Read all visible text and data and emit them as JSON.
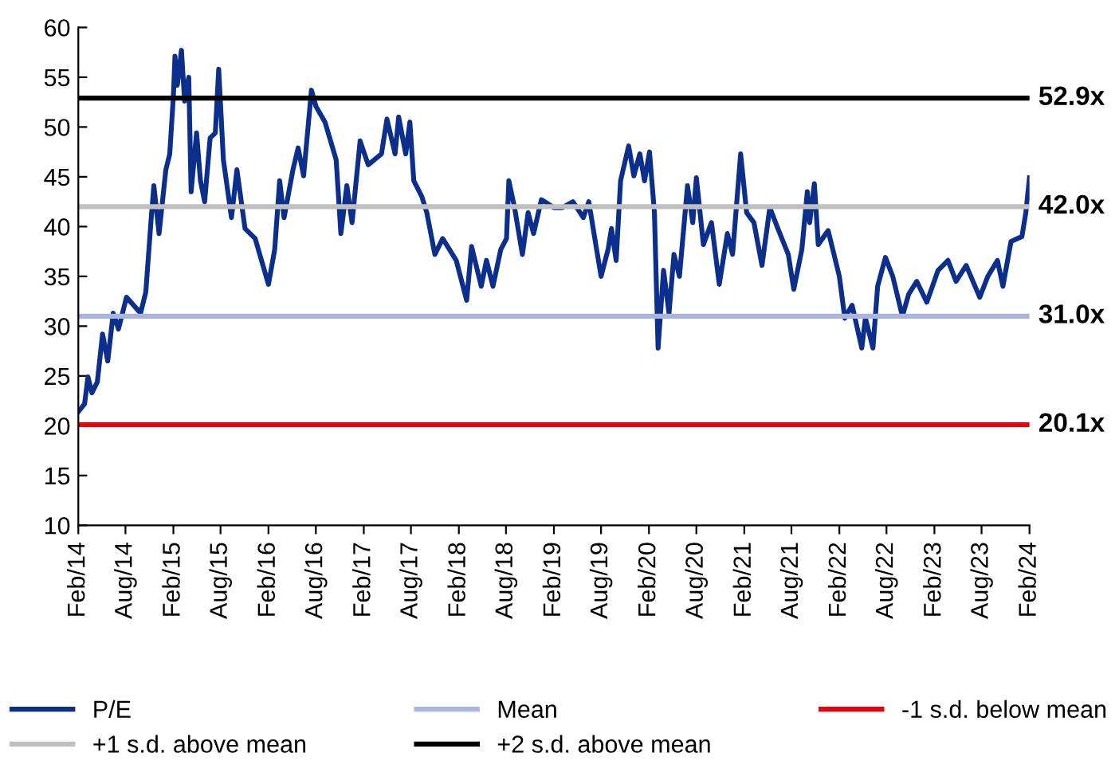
{
  "chart_data": {
    "type": "line",
    "x": [
      "2014-02-01",
      "2014-02-25",
      "2014-03-10",
      "2014-03-25",
      "2014-04-15",
      "2014-05-05",
      "2014-05-25",
      "2014-06-15",
      "2014-07-05",
      "2014-08-05",
      "2014-09-28",
      "2014-10-18",
      "2014-11-08",
      "2014-11-18",
      "2014-12-08",
      "2015-01-03",
      "2015-01-18",
      "2015-02-01",
      "2015-02-07",
      "2015-02-16",
      "2015-03-04",
      "2015-03-16",
      "2015-04-01",
      "2015-04-10",
      "2015-05-01",
      "2015-05-16",
      "2015-06-01",
      "2015-06-22",
      "2015-07-12",
      "2015-07-25",
      "2015-08-12",
      "2015-09-12",
      "2015-10-03",
      "2015-11-03",
      "2015-12-12",
      "2016-02-01",
      "2016-02-25",
      "2016-03-15",
      "2016-04-01",
      "2016-05-05",
      "2016-05-25",
      "2016-06-15",
      "2016-07-15",
      "2016-08-01",
      "2016-09-05",
      "2016-10-18",
      "2016-11-05",
      "2016-11-28",
      "2016-12-18",
      "2017-01-18",
      "2017-02-18",
      "2017-04-10",
      "2017-05-01",
      "2017-06-01",
      "2017-06-15",
      "2017-07-12",
      "2017-07-28",
      "2017-08-12",
      "2017-09-12",
      "2017-10-01",
      "2017-11-01",
      "2017-12-01",
      "2018-01-22",
      "2018-03-03",
      "2018-03-22",
      "2018-04-28",
      "2018-05-18",
      "2018-06-12",
      "2018-07-12",
      "2018-08-03",
      "2018-08-12",
      "2018-09-03",
      "2018-10-03",
      "2018-10-25",
      "2018-11-15",
      "2018-12-15",
      "2019-02-01",
      "2019-03-05",
      "2019-04-15",
      "2019-05-25",
      "2019-06-15",
      "2019-07-15",
      "2019-08-01",
      "2019-08-28",
      "2019-09-10",
      "2019-09-28",
      "2019-10-15",
      "2019-11-15",
      "2019-12-05",
      "2019-12-28",
      "2020-01-15",
      "2020-02-03",
      "2020-02-22",
      "2020-03-07",
      "2020-03-28",
      "2020-04-18",
      "2020-05-07",
      "2020-05-28",
      "2020-06-28",
      "2020-07-18",
      "2020-08-01",
      "2020-08-28",
      "2020-09-28",
      "2020-10-28",
      "2020-11-28",
      "2020-12-18",
      "2021-01-18",
      "2021-02-10",
      "2021-03-10",
      "2021-04-10",
      "2021-05-10",
      "2021-06-10",
      "2021-07-20",
      "2021-08-10",
      "2021-09-10",
      "2021-10-01",
      "2021-10-10",
      "2021-10-28",
      "2021-11-12",
      "2021-12-20",
      "2022-02-01",
      "2022-02-22",
      "2022-03-22",
      "2022-04-28",
      "2022-05-12",
      "2022-06-10",
      "2022-06-28",
      "2022-07-28",
      "2022-08-25",
      "2022-10-01",
      "2022-10-25",
      "2022-11-25",
      "2023-01-03",
      "2023-02-15",
      "2023-03-25",
      "2023-04-25",
      "2023-06-03",
      "2023-07-25",
      "2023-08-25",
      "2023-10-01",
      "2023-10-22",
      "2023-11-22",
      "2024-01-03",
      "2024-01-18",
      "2024-02-01"
    ],
    "series": [
      {
        "name": "P/E",
        "color": "#0c2f8c",
        "values": [
          21.4,
          22.2,
          24.9,
          23.3,
          24.4,
          29.2,
          26.5,
          31.3,
          29.7,
          32.9,
          31.3,
          33.4,
          40.9,
          44.1,
          39.3,
          45.7,
          47.3,
          53.1,
          57.1,
          54.2,
          57.7,
          52.6,
          55.0,
          43.5,
          49.4,
          44.6,
          42.5,
          48.9,
          49.4,
          55.8,
          46.7,
          40.9,
          45.7,
          39.8,
          38.8,
          34.2,
          37.7,
          44.6,
          40.9,
          45.7,
          47.9,
          45.1,
          53.7,
          52.1,
          50.5,
          46.7,
          39.3,
          44.1,
          40.4,
          48.6,
          46.2,
          47.3,
          50.8,
          47.3,
          51.0,
          47.3,
          50.5,
          44.6,
          43.0,
          41.4,
          37.2,
          38.8,
          36.6,
          32.6,
          38.0,
          34.0,
          36.6,
          34.0,
          37.7,
          38.8,
          44.6,
          41.9,
          37.2,
          41.4,
          39.3,
          42.7,
          41.9,
          41.9,
          42.5,
          40.9,
          42.5,
          37.7,
          35.0,
          37.7,
          39.8,
          36.6,
          44.6,
          48.1,
          45.1,
          47.3,
          44.6,
          47.5,
          41.4,
          27.8,
          35.6,
          31.3,
          37.2,
          35.0,
          44.1,
          40.4,
          44.9,
          38.2,
          40.4,
          34.2,
          39.3,
          37.2,
          47.3,
          41.4,
          40.4,
          36.1,
          41.9,
          39.8,
          37.2,
          33.7,
          37.7,
          43.5,
          40.4,
          44.3,
          38.2,
          39.6,
          35.0,
          30.8,
          32.1,
          27.8,
          30.8,
          27.8,
          34.0,
          36.9,
          35.0,
          31.0,
          33.2,
          34.5,
          32.4,
          35.6,
          36.6,
          34.5,
          36.1,
          32.9,
          35.0,
          36.6,
          34.0,
          38.5,
          39.0,
          41.4,
          44.9
        ]
      },
      {
        "name": "Mean",
        "color": "#a9b5dd",
        "x": [
          "2014-02-01",
          "2024-02-01"
        ],
        "values": [
          31.0,
          31.0
        ]
      },
      {
        "name": "-1 s.d. below mean",
        "color": "#e8000b",
        "x": [
          "2014-02-01",
          "2024-02-01"
        ],
        "values": [
          20.1,
          20.1
        ]
      },
      {
        "name": "+1 s.d. above mean",
        "color": "#c0c0c0",
        "x": [
          "2014-02-01",
          "2024-02-01"
        ],
        "values": [
          42.0,
          42.0
        ]
      },
      {
        "name": "+2 s.d. above mean",
        "color": "#000000",
        "x": [
          "2014-02-01",
          "2024-02-01"
        ],
        "values": [
          52.9,
          52.9
        ]
      }
    ],
    "annotations": [
      {
        "text": "52.9x",
        "x": "2024-02-01",
        "y": 52.9
      },
      {
        "text": "42.0x",
        "x": "2024-02-01",
        "y": 42.0
      },
      {
        "text": "31.0x",
        "x": "2024-02-01",
        "y": 31.0
      },
      {
        "text": "20.1x",
        "x": "2024-02-01",
        "y": 20.1
      }
    ],
    "xlim": [
      "2014-02-01",
      "2024-02-01"
    ],
    "xticks": [
      {
        "value": "2014-02-01",
        "label": "Feb/14"
      },
      {
        "value": "2014-08-01",
        "label": "Aug/14"
      },
      {
        "value": "2015-02-01",
        "label": "Feb/15"
      },
      {
        "value": "2015-08-01",
        "label": "Aug/15"
      },
      {
        "value": "2016-02-01",
        "label": "Feb/16"
      },
      {
        "value": "2016-08-01",
        "label": "Aug/16"
      },
      {
        "value": "2017-02-01",
        "label": "Feb/17"
      },
      {
        "value": "2017-08-01",
        "label": "Aug/17"
      },
      {
        "value": "2018-02-01",
        "label": "Feb/18"
      },
      {
        "value": "2018-08-01",
        "label": "Aug/18"
      },
      {
        "value": "2019-02-01",
        "label": "Feb/19"
      },
      {
        "value": "2019-08-01",
        "label": "Aug/19"
      },
      {
        "value": "2020-02-01",
        "label": "Feb/20"
      },
      {
        "value": "2020-08-01",
        "label": "Aug/20"
      },
      {
        "value": "2021-02-01",
        "label": "Feb/21"
      },
      {
        "value": "2021-08-01",
        "label": "Aug/21"
      },
      {
        "value": "2022-02-01",
        "label": "Feb/22"
      },
      {
        "value": "2022-08-01",
        "label": "Aug/22"
      },
      {
        "value": "2023-02-01",
        "label": "Feb/23"
      },
      {
        "value": "2023-08-01",
        "label": "Aug/23"
      },
      {
        "value": "2024-02-01",
        "label": "Feb/24"
      }
    ],
    "ylim": [
      10,
      60
    ],
    "yticks": [
      10,
      15,
      20,
      25,
      30,
      35,
      40,
      45,
      50,
      55,
      60
    ],
    "grid": false,
    "legend": "bottom",
    "marker": "none",
    "line_style": "solid"
  }
}
